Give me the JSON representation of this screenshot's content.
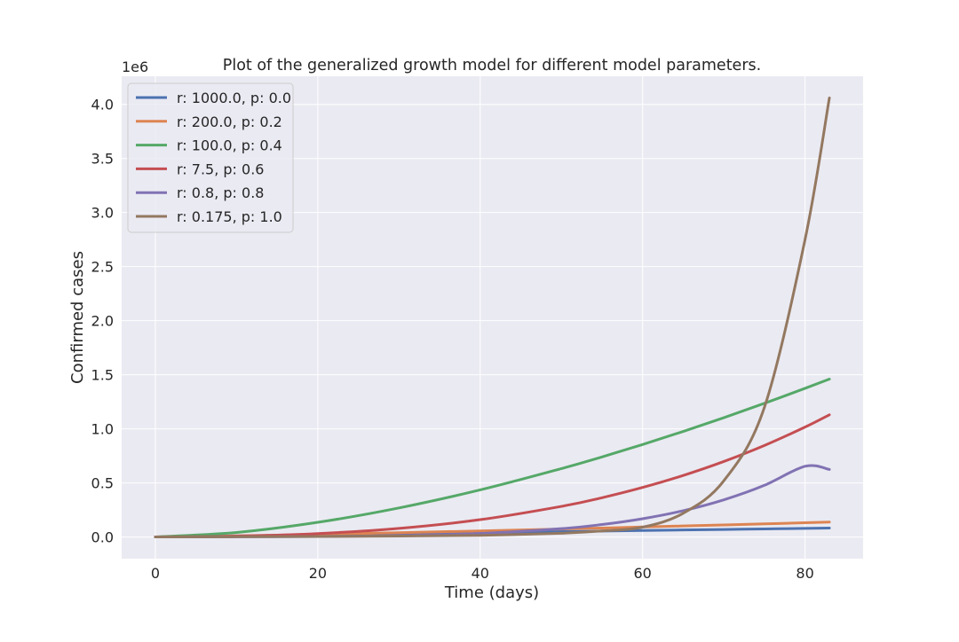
{
  "chart_data": {
    "type": "line",
    "title": "Plot of the generalized growth model for different model parameters.",
    "xlabel": "Time (days)",
    "ylabel": "Confirmed cases",
    "y_offset_label": "1e6",
    "xlim": [
      -4.15,
      87.15
    ],
    "ylim": [
      -0.2,
      4.26
    ],
    "x_ticks": [
      0,
      20,
      40,
      60,
      80
    ],
    "x_tick_labels": [
      "0",
      "20",
      "40",
      "60",
      "80"
    ],
    "y_ticks": [
      0.0,
      0.5,
      1.0,
      1.5,
      2.0,
      2.5,
      3.0,
      3.5,
      4.0
    ],
    "y_tick_labels": [
      "0.0",
      "0.5",
      "1.0",
      "1.5",
      "2.0",
      "2.5",
      "3.0",
      "3.5",
      "4.0"
    ],
    "y_unit_multiplier": 1000000,
    "grid": true,
    "legend_position": "top-left",
    "x": [
      0,
      10,
      20,
      30,
      40,
      50,
      55,
      60,
      65,
      70,
      75,
      80,
      83
    ],
    "series": [
      {
        "name": "r: 1000.0, p: 0.0",
        "color": "#4c72b0",
        "values": [
          0.001,
          0.01,
          0.02,
          0.03,
          0.04,
          0.05,
          0.055,
          0.06,
          0.065,
          0.07,
          0.075,
          0.08,
          0.083
        ]
      },
      {
        "name": "r: 200.0, p: 0.2",
        "color": "#dd8452",
        "values": [
          0.001,
          0.0107,
          0.0243,
          0.0397,
          0.0564,
          0.0741,
          0.0833,
          0.0927,
          0.1022,
          0.1119,
          0.1218,
          0.1319,
          0.138
        ]
      },
      {
        "name": "r: 100.0, p: 0.4",
        "color": "#55a868",
        "values": [
          0.001,
          0.0421,
          0.1358,
          0.2689,
          0.4358,
          0.6328,
          0.7407,
          0.8553,
          0.9762,
          1.1033,
          1.2362,
          1.3745,
          1.46
        ]
      },
      {
        "name": "r: 7.5, p: 0.6",
        "color": "#c44e52",
        "values": [
          0.001,
          0.0081,
          0.0319,
          0.0797,
          0.1604,
          0.2834,
          0.3634,
          0.4582,
          0.5692,
          0.6981,
          0.8465,
          1.0163,
          1.13
        ]
      },
      {
        "name": "r: 0.8, p: 0.8",
        "color": "#8172b3",
        "values": [
          0.001,
          0.0017,
          0.0049,
          0.0132,
          0.033,
          0.0774,
          0.1155,
          0.1692,
          0.2434,
          0.3439,
          0.4781,
          0.6544,
          0.625
        ]
      },
      {
        "name": "r: 0.175, p: 1.0",
        "color": "#937860",
        "values": [
          0.001,
          0.0024,
          0.0051,
          0.0094,
          0.0157,
          0.035,
          0.056,
          0.091,
          0.22,
          0.52,
          1.2,
          2.75,
          4.06
        ]
      }
    ]
  }
}
